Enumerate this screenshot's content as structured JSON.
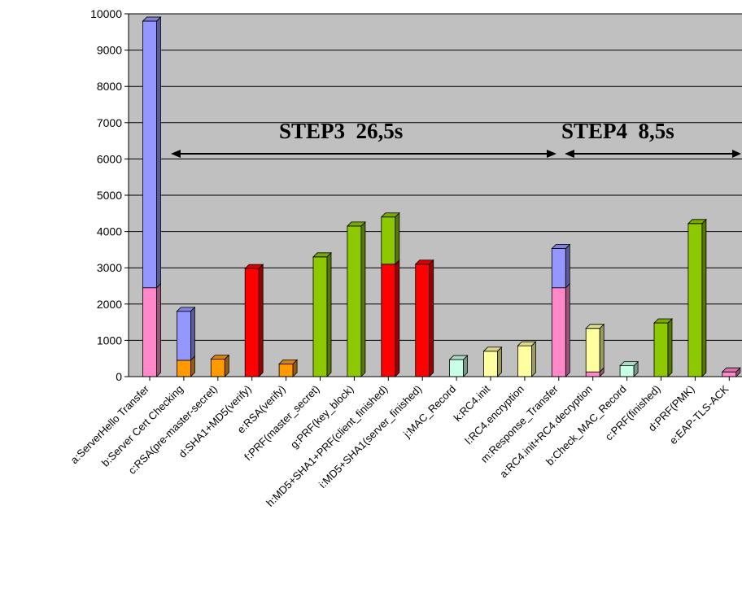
{
  "chart_data": {
    "type": "bar",
    "stacked": true,
    "three_d": true,
    "grid": true,
    "ylim": [
      0,
      10000
    ],
    "yticks": [
      0,
      1000,
      2000,
      3000,
      4000,
      5000,
      6000,
      7000,
      8000,
      9000,
      10000
    ],
    "categories": [
      "a:ServerHello Transfer",
      "b:Server Cert Checking",
      "c:RSA(pre-master-secret)",
      "d:SHA1+MD5(verify)",
      "e:RSA(verify)",
      "f:PRF(master_secret)",
      "g:PRF(key_block)",
      "h:MD5+SHA1+PRF(client_finished)",
      "i:MD5+SHA1(server_finished)",
      "j:MAC_Record",
      "k:RC4.init",
      "l:RC4.encryption",
      "m:Response_Transfer",
      "a:RC4.init+RC4.decryption",
      "b:Check_MAC_Record",
      "c:PRF(finished)",
      "d:PRF(PMK)",
      "e:EAP-TLS-ACK"
    ],
    "bars": [
      {
        "segments": [
          {
            "value": 2450,
            "color": "#ff88c8"
          },
          {
            "value": 7350,
            "color": "#9696ff"
          }
        ]
      },
      {
        "segments": [
          {
            "value": 450,
            "color": "#ff9a00"
          },
          {
            "value": 1350,
            "color": "#9696ff"
          }
        ]
      },
      {
        "segments": [
          {
            "value": 480,
            "color": "#ff9a00"
          }
        ]
      },
      {
        "segments": [
          {
            "value": 2980,
            "color": "#ff0000"
          }
        ]
      },
      {
        "segments": [
          {
            "value": 350,
            "color": "#ff9a00"
          }
        ]
      },
      {
        "segments": [
          {
            "value": 3300,
            "color": "#8ec800"
          }
        ]
      },
      {
        "segments": [
          {
            "value": 4150,
            "color": "#8ec800"
          }
        ]
      },
      {
        "segments": [
          {
            "value": 3100,
            "color": "#ff0000"
          },
          {
            "value": 1300,
            "color": "#8ec800"
          }
        ]
      },
      {
        "segments": [
          {
            "value": 3100,
            "color": "#ff0000"
          }
        ]
      },
      {
        "segments": [
          {
            "value": 470,
            "color": "#c8ffe6"
          }
        ]
      },
      {
        "segments": [
          {
            "value": 700,
            "color": "#ffffa0"
          }
        ]
      },
      {
        "segments": [
          {
            "value": 850,
            "color": "#ffffa0"
          }
        ]
      },
      {
        "segments": [
          {
            "value": 2450,
            "color": "#ff88c8"
          },
          {
            "value": 1080,
            "color": "#9696ff"
          }
        ]
      },
      {
        "segments": [
          {
            "value": 130,
            "color": "#ff88c8"
          },
          {
            "value": 1200,
            "color": "#ffffa0"
          }
        ]
      },
      {
        "segments": [
          {
            "value": 300,
            "color": "#c8ffe6"
          }
        ]
      },
      {
        "segments": [
          {
            "value": 1480,
            "color": "#8ec800"
          }
        ]
      },
      {
        "segments": [
          {
            "value": 4220,
            "color": "#8ec800"
          }
        ]
      },
      {
        "segments": [
          {
            "value": 130,
            "color": "#ff88c8"
          }
        ]
      }
    ],
    "annotations": [
      {
        "text": "STEP3  26,5s"
      },
      {
        "text": "STEP4  8,5s"
      }
    ],
    "colors": {
      "plot_background": "#c0c0c0",
      "gridline": "#000000"
    }
  }
}
